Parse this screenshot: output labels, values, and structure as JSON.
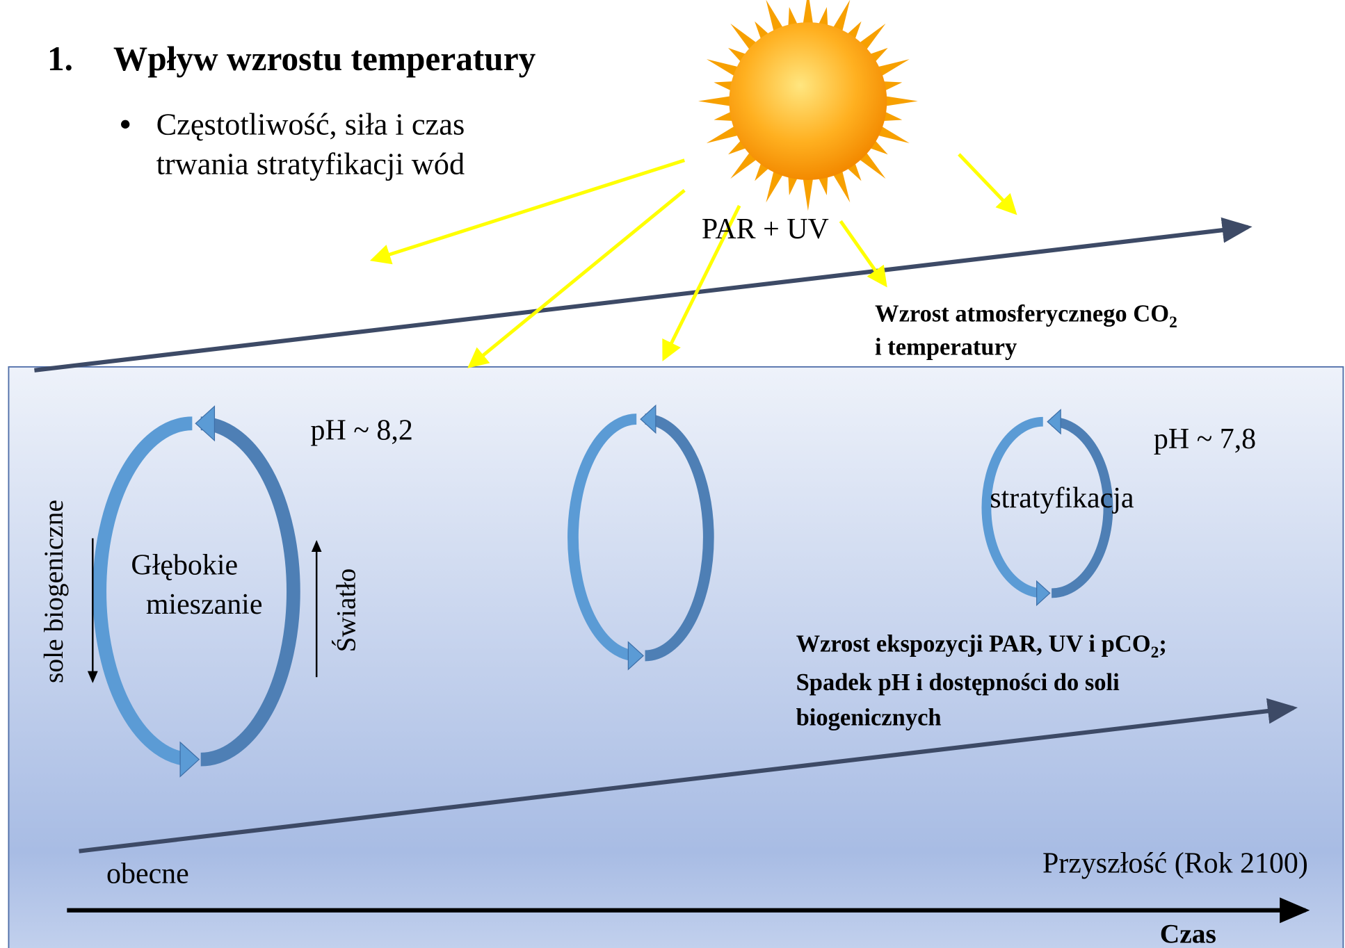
{
  "heading": {
    "number": "1.",
    "title": "Wpływ wzrostu temperatury"
  },
  "bullet": [
    "Częstotliwość, siła i czas",
    "trwania stratyfikacji wód"
  ],
  "sun_label": "PAR + UV",
  "co2_label": {
    "line1": "Wzrost atmosferycznego CO",
    "sub": "2",
    "line2": "i temperatury"
  },
  "ph_left": "pH ~ 8,2",
  "ph_right": "pH ~ 7,8",
  "nutrients": "sole biogeniczne",
  "light": "Światło",
  "mixing": [
    "Głębokie",
    "mieszanie"
  ],
  "stratification": "stratyfikacja",
  "exposure": {
    "line1": "Wzrost ekspozycji PAR, UV  i pCO",
    "sub": "2",
    "end": ";",
    "line2": "Spadek pH i dostępności do soli",
    "line3": "biogenicznych"
  },
  "present": "obecne",
  "future": "Przyszłość (Rok 2100)",
  "time": "Czas"
}
